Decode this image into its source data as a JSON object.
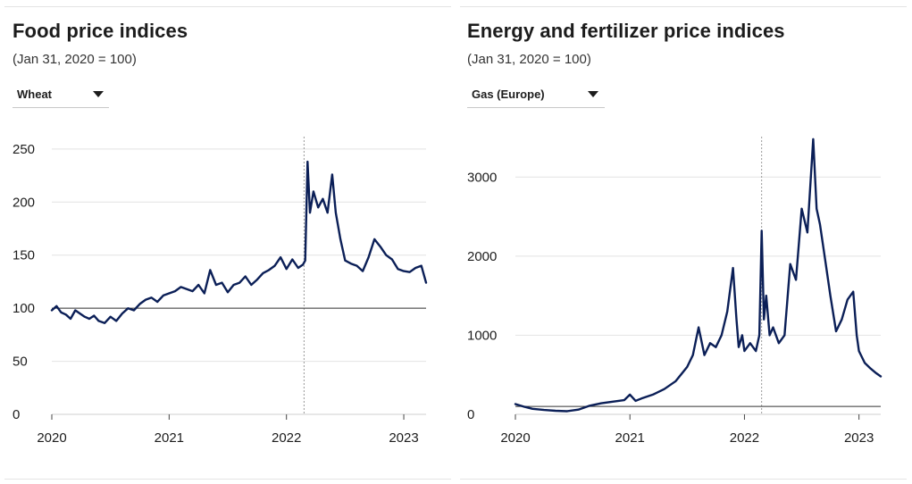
{
  "colors": {
    "series": "#0b1f57",
    "baseline": "#333333",
    "grid": "#e2e2e2",
    "event_line": "#999999"
  },
  "food_panel": {
    "title": "Food price indices",
    "subtitle": "(Jan 31, 2020 = 100)",
    "dropdown": {
      "selected": "Wheat",
      "icon": "caret-down-icon"
    }
  },
  "energy_panel": {
    "title": "Energy and fertilizer price indices",
    "subtitle": "(Jan 31, 2020 = 100)",
    "dropdown": {
      "selected": "Gas (Europe)",
      "icon": "caret-down-icon"
    }
  },
  "chart_data": [
    {
      "type": "line",
      "title": "Food price indices",
      "subtitle": "(Jan 31, 2020 = 100)",
      "series_name": "Wheat",
      "xlabel": "",
      "ylabel": "",
      "xlim": [
        2020.0,
        2023.19
      ],
      "ylim": [
        0,
        260
      ],
      "yticks": [
        0,
        50,
        100,
        150,
        200,
        250
      ],
      "xticks": [
        2020,
        2021,
        2022,
        2023
      ],
      "xtick_labels": [
        "2020",
        "2021",
        "2022",
        "2023"
      ],
      "baseline": 100,
      "event_line_x": 2022.15,
      "x": [
        2020.0,
        2020.04,
        2020.08,
        2020.12,
        2020.16,
        2020.2,
        2020.24,
        2020.28,
        2020.32,
        2020.36,
        2020.4,
        2020.45,
        2020.5,
        2020.55,
        2020.6,
        2020.65,
        2020.7,
        2020.75,
        2020.8,
        2020.85,
        2020.9,
        2020.95,
        2021.0,
        2021.05,
        2021.1,
        2021.15,
        2021.2,
        2021.25,
        2021.3,
        2021.35,
        2021.4,
        2021.45,
        2021.5,
        2021.55,
        2021.6,
        2021.65,
        2021.7,
        2021.75,
        2021.8,
        2021.85,
        2021.9,
        2021.95,
        2022.0,
        2022.05,
        2022.1,
        2022.14,
        2022.16,
        2022.18,
        2022.2,
        2022.23,
        2022.27,
        2022.31,
        2022.35,
        2022.39,
        2022.42,
        2022.46,
        2022.5,
        2022.55,
        2022.6,
        2022.65,
        2022.7,
        2022.75,
        2022.8,
        2022.85,
        2022.9,
        2022.95,
        2023.0,
        2023.05,
        2023.1,
        2023.15,
        2023.19
      ],
      "values": [
        98,
        102,
        96,
        94,
        90,
        98,
        95,
        92,
        90,
        93,
        88,
        86,
        92,
        88,
        95,
        100,
        98,
        104,
        108,
        110,
        106,
        112,
        114,
        116,
        120,
        118,
        116,
        122,
        114,
        136,
        122,
        124,
        115,
        122,
        124,
        130,
        122,
        127,
        133,
        136,
        140,
        148,
        137,
        146,
        138,
        141,
        145,
        238,
        190,
        210,
        195,
        203,
        190,
        226,
        190,
        165,
        145,
        142,
        140,
        135,
        148,
        165,
        158,
        150,
        146,
        137,
        135,
        134,
        138,
        140,
        124
      ]
    },
    {
      "type": "line",
      "title": "Energy and fertilizer price indices",
      "subtitle": "(Jan 31, 2020 = 100)",
      "series_name": "Gas (Europe)",
      "xlabel": "",
      "ylabel": "",
      "xlim": [
        2020.0,
        2023.19
      ],
      "ylim": [
        0,
        3500
      ],
      "yticks": [
        0,
        1000,
        2000,
        3000
      ],
      "xticks": [
        2020,
        2021,
        2022,
        2023
      ],
      "xtick_labels": [
        "2020",
        "2021",
        "2022",
        "2023"
      ],
      "baseline": 100,
      "event_line_x": 2022.15,
      "x": [
        2020.0,
        2020.08,
        2020.15,
        2020.25,
        2020.35,
        2020.45,
        2020.55,
        2020.65,
        2020.75,
        2020.85,
        2020.95,
        2021.0,
        2021.05,
        2021.1,
        2021.2,
        2021.3,
        2021.4,
        2021.5,
        2021.55,
        2021.6,
        2021.65,
        2021.7,
        2021.75,
        2021.8,
        2021.85,
        2021.9,
        2021.93,
        2021.95,
        2021.98,
        2022.0,
        2022.05,
        2022.1,
        2022.13,
        2022.15,
        2022.17,
        2022.19,
        2022.22,
        2022.25,
        2022.3,
        2022.35,
        2022.4,
        2022.45,
        2022.5,
        2022.55,
        2022.6,
        2022.63,
        2022.66,
        2022.7,
        2022.75,
        2022.8,
        2022.85,
        2022.9,
        2022.95,
        2022.98,
        2023.0,
        2023.05,
        2023.1,
        2023.15,
        2023.19
      ],
      "values": [
        130,
        95,
        70,
        55,
        45,
        40,
        60,
        110,
        140,
        160,
        180,
        250,
        170,
        200,
        250,
        320,
        420,
        600,
        750,
        1100,
        750,
        900,
        850,
        1000,
        1300,
        1850,
        1200,
        850,
        1000,
        800,
        900,
        800,
        1000,
        2320,
        1200,
        1500,
        1000,
        1100,
        900,
        1000,
        1900,
        1700,
        2600,
        2300,
        3480,
        2600,
        2400,
        2000,
        1500,
        1050,
        1200,
        1450,
        1550,
        1000,
        800,
        650,
        580,
        520,
        480
      ]
    }
  ]
}
